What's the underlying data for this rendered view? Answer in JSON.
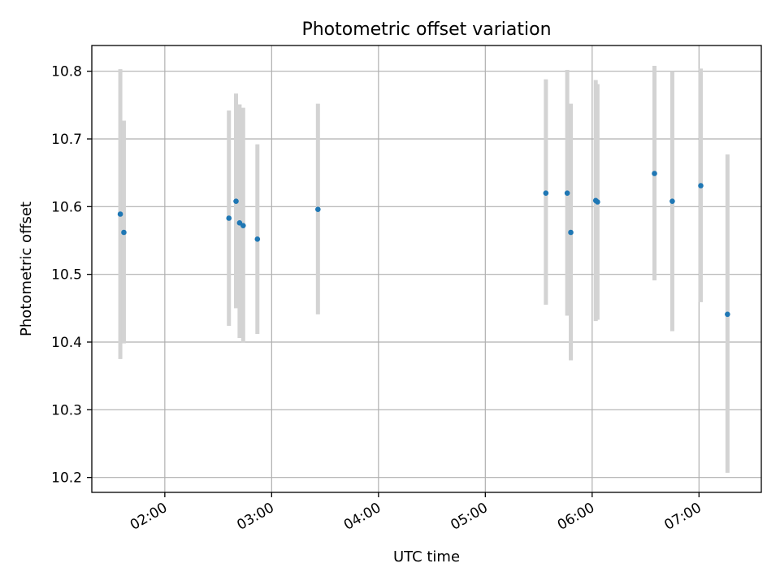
{
  "chart_data": {
    "type": "scatter",
    "title": "Photometric offset variation",
    "xlabel": "UTC time",
    "ylabel": "Photometric offset",
    "x_tick_labels": [
      "02:00",
      "03:00",
      "04:00",
      "05:00",
      "06:00",
      "07:00"
    ],
    "y_tick_labels": [
      "10.2",
      "10.3",
      "10.4",
      "10.5",
      "10.6",
      "10.7",
      "10.8"
    ],
    "y_ticks": [
      10.2,
      10.3,
      10.4,
      10.5,
      10.6,
      10.7,
      10.8
    ],
    "xlim": [
      "01:19",
      "07:35"
    ],
    "ylim": [
      10.178,
      10.838
    ],
    "grid": true,
    "colors": {
      "points": "#1f77b4",
      "error_bars": "#d3d3d3"
    },
    "points": [
      {
        "x": "01:35",
        "y": 10.589,
        "ylo": 10.375,
        "yhi": 10.803
      },
      {
        "x": "01:37",
        "y": 10.562,
        "ylo": 10.398,
        "yhi": 10.727
      },
      {
        "x": "02:36",
        "y": 10.583,
        "ylo": 10.424,
        "yhi": 10.742
      },
      {
        "x": "02:40",
        "y": 10.608,
        "ylo": 10.45,
        "yhi": 10.767
      },
      {
        "x": "02:42",
        "y": 10.576,
        "ylo": 10.406,
        "yhi": 10.751
      },
      {
        "x": "02:44",
        "y": 10.572,
        "ylo": 10.399,
        "yhi": 10.746
      },
      {
        "x": "02:52",
        "y": 10.552,
        "ylo": 10.412,
        "yhi": 10.692
      },
      {
        "x": "03:26",
        "y": 10.596,
        "ylo": 10.441,
        "yhi": 10.752
      },
      {
        "x": "05:34",
        "y": 10.62,
        "ylo": 10.455,
        "yhi": 10.788
      },
      {
        "x": "05:46",
        "y": 10.62,
        "ylo": 10.439,
        "yhi": 10.802
      },
      {
        "x": "05:48",
        "y": 10.562,
        "ylo": 10.373,
        "yhi": 10.752
      },
      {
        "x": "06:02",
        "y": 10.609,
        "ylo": 10.431,
        "yhi": 10.787
      },
      {
        "x": "06:03",
        "y": 10.607,
        "ylo": 10.433,
        "yhi": 10.781
      },
      {
        "x": "06:35",
        "y": 10.649,
        "ylo": 10.491,
        "yhi": 10.808
      },
      {
        "x": "06:45",
        "y": 10.608,
        "ylo": 10.416,
        "yhi": 10.8
      },
      {
        "x": "07:01",
        "y": 10.631,
        "ylo": 10.459,
        "yhi": 10.804
      },
      {
        "x": "07:16",
        "y": 10.441,
        "ylo": 10.207,
        "yhi": 10.677
      }
    ]
  }
}
